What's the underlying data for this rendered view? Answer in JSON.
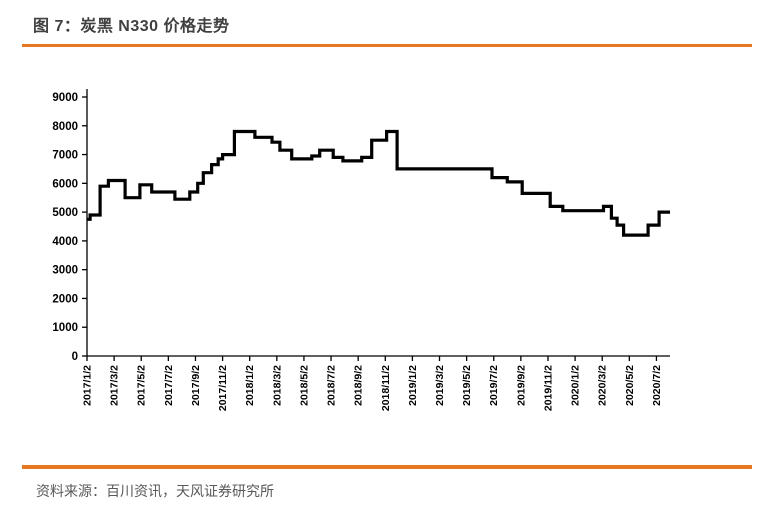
{
  "figure": {
    "title": "图 7：炭黑 N330 价格走势",
    "source": "资料来源：百川资讯，天风证券研究所",
    "accent_color": "#E87722",
    "title_color": "#404040",
    "source_color": "#595959"
  },
  "chart_data": {
    "type": "line",
    "line_style": "step-after",
    "series_name": "炭黑N330价格",
    "title": "炭黑 N330 价格走势",
    "xlabel": "",
    "ylabel": "",
    "grid": false,
    "legend": "none",
    "line_color": "#000000",
    "axis_color": "#000000",
    "ylim": [
      0,
      9000
    ],
    "y_ticks": [
      0,
      1000,
      2000,
      3000,
      4000,
      5000,
      6000,
      7000,
      8000,
      9000
    ],
    "x_range": [
      "2017/1/2",
      "2020/8/2"
    ],
    "x_ticks": [
      "2017/1/2",
      "2017/3/2",
      "2017/5/2",
      "2017/7/2",
      "2017/9/2",
      "2017/11/2",
      "2018/1/2",
      "2018/3/2",
      "2018/5/2",
      "2018/7/2",
      "2018/9/2",
      "2018/11/2",
      "2019/1/2",
      "2019/3/2",
      "2019/5/2",
      "2019/7/2",
      "2019/9/2",
      "2019/11/2",
      "2020/1/2",
      "2020/3/2",
      "2020/5/2",
      "2020/7/2"
    ],
    "points": [
      [
        "2017/1/2",
        4750
      ],
      [
        "2017/1/9",
        4900
      ],
      [
        "2017/2/1",
        5900
      ],
      [
        "2017/2/20",
        6100
      ],
      [
        "2017/3/27",
        5500
      ],
      [
        "2017/4/30",
        5950
      ],
      [
        "2017/5/26",
        5700
      ],
      [
        "2017/7/17",
        5450
      ],
      [
        "2017/8/20",
        5700
      ],
      [
        "2017/9/7",
        6000
      ],
      [
        "2017/9/20",
        6370
      ],
      [
        "2017/10/8",
        6650
      ],
      [
        "2017/10/23",
        6850
      ],
      [
        "2017/11/2",
        7000
      ],
      [
        "2017/11/29",
        7800
      ],
      [
        "2018/1/14",
        7600
      ],
      [
        "2018/2/22",
        7430
      ],
      [
        "2018/3/9",
        7150
      ],
      [
        "2018/4/5",
        6850
      ],
      [
        "2018/5/20",
        6950
      ],
      [
        "2018/6/7",
        7150
      ],
      [
        "2018/7/7",
        6900
      ],
      [
        "2018/7/29",
        6780
      ],
      [
        "2018/9/10",
        6900
      ],
      [
        "2018/10/2",
        7500
      ],
      [
        "2018/11/5",
        7800
      ],
      [
        "2018/11/29",
        6500
      ],
      [
        "2019/6/29",
        6200
      ],
      [
        "2019/8/2",
        6050
      ],
      [
        "2019/9/5",
        5650
      ],
      [
        "2019/11/7",
        5200
      ],
      [
        "2019/12/5",
        5050
      ],
      [
        "2020/3/5",
        5200
      ],
      [
        "2020/3/23",
        4790
      ],
      [
        "2020/4/5",
        4550
      ],
      [
        "2020/4/20",
        4200
      ],
      [
        "2020/6/14",
        4550
      ],
      [
        "2020/7/8",
        5000
      ],
      [
        "2020/8/2",
        5000
      ]
    ]
  }
}
